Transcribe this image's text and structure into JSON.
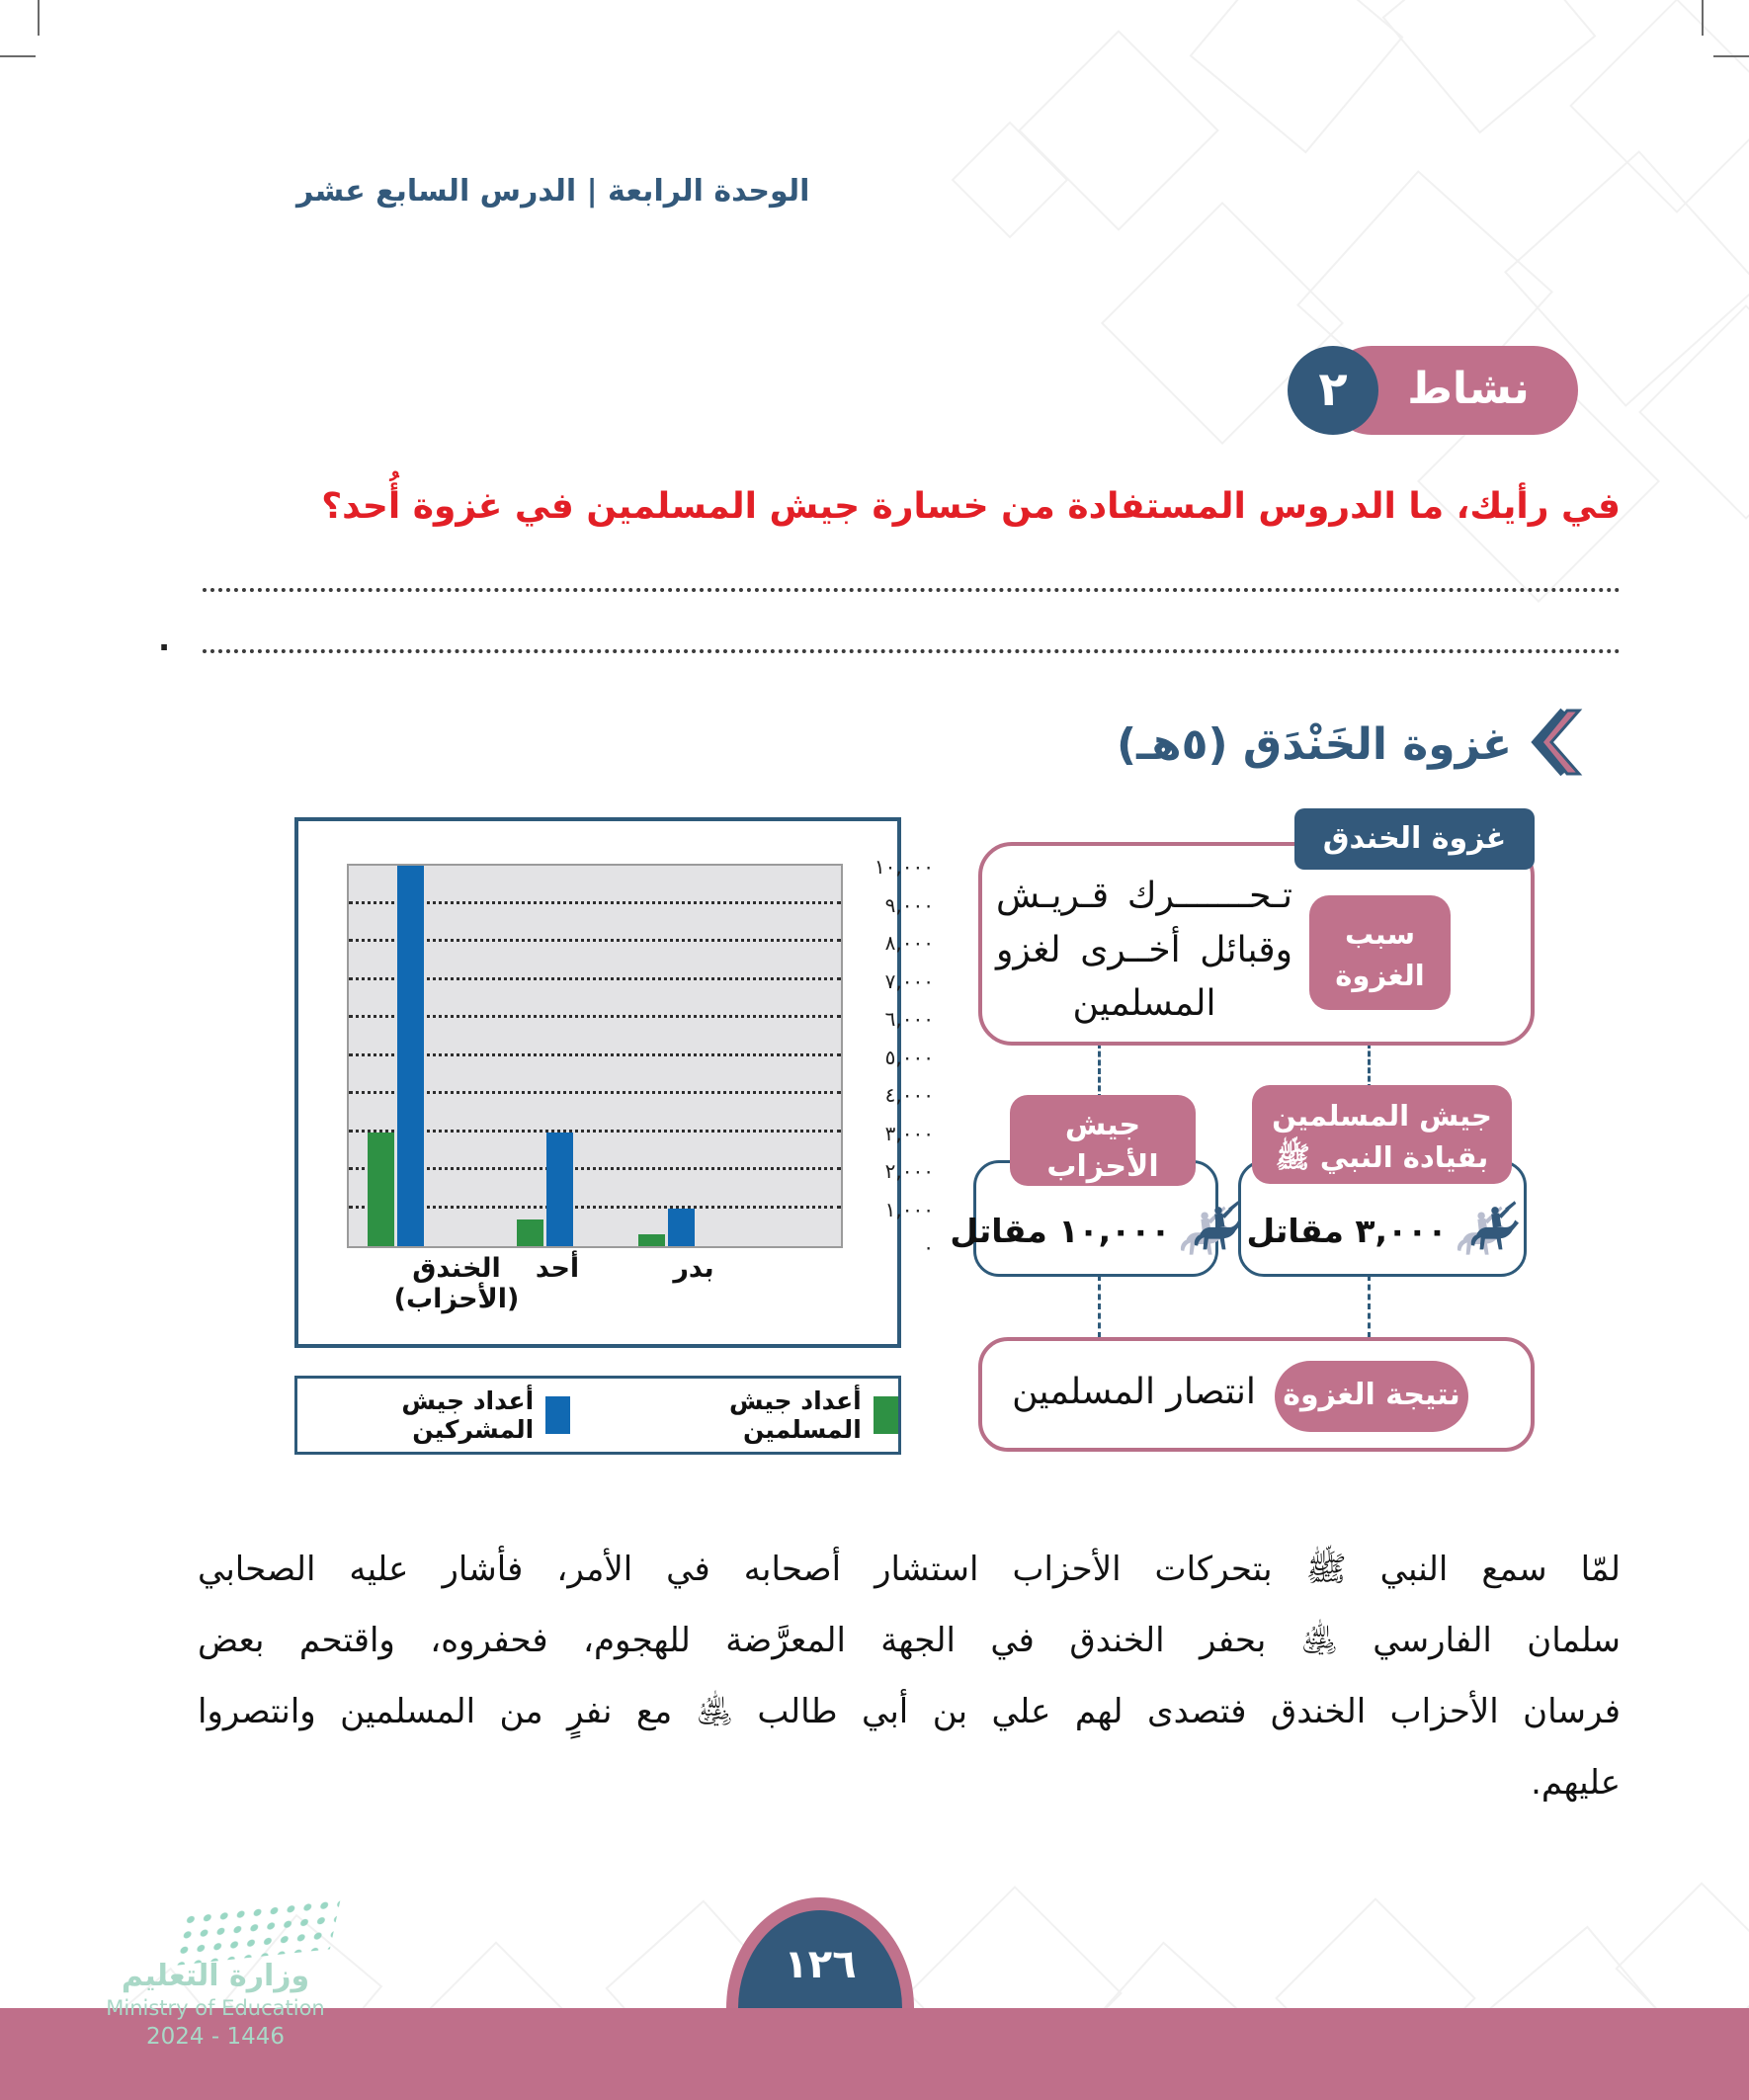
{
  "page": {
    "header": "الوحدة الرابعة | الدرس السابع عشر",
    "page_number": "١٢٦"
  },
  "activity": {
    "label": "نشاط",
    "number": "٢",
    "question": "في رأيك، ما الدروس المستفادة من خسارة جيش المسلمين في غزوة أُحد؟",
    "answer_period": "."
  },
  "section": {
    "title": "غزوة الخَنْدَق (٥هـ)"
  },
  "chart_data": {
    "type": "bar",
    "categories": [
      "الخندق (الأحزاب)",
      "أحد",
      "بدر"
    ],
    "series": [
      {
        "name": "أعداد جيش المشركين",
        "color": "#1169B2",
        "values": [
          10000,
          3000,
          1000
        ]
      },
      {
        "name": "أعداد جيش المسلمين",
        "color": "#2E9144",
        "values": [
          3000,
          700,
          300
        ]
      }
    ],
    "title": "",
    "xlabel": "",
    "ylabel": "",
    "ylim": [
      0,
      10000
    ],
    "ytick_step": 1000,
    "ytick_labels": [
      "٠",
      "١,٠٠٠",
      "٢,٠٠٠",
      "٣,٠٠٠",
      "٤,٠٠٠",
      "٥,٠٠٠",
      "٦,٠٠٠",
      "٧,٠٠٠",
      "٨,٠٠٠",
      "٩,٠٠٠",
      "١٠,٠٠٠"
    ],
    "grid": "horizontal-dashed",
    "legend_position": "bottom",
    "legend": [
      {
        "label": "أعداد جيش المسلمين",
        "color": "#2E9144"
      },
      {
        "label": "أعداد جيش المشركين",
        "color": "#1169B2"
      }
    ]
  },
  "diagram": {
    "title": "غزوة الخندق",
    "reason_label": "سبب الغزوة",
    "reason_lines": [
      "تـحـــــــرك قـريـش",
      "وقبائل أخــرى لغزو",
      "المسلمين"
    ],
    "ahzab_label": "جيش الأحزاب",
    "ahzab_count": "١٠,٠٠٠ مقاتل",
    "muslims_label": "جيش المسلمين بقيادة النبي ﷺ",
    "muslims_count": "٣,٠٠٠ مقاتل",
    "result_label": "نتيجة الغزوة",
    "result_text": "انتصار المسلمين"
  },
  "paragraph": {
    "lines": [
      "لمّا سمع النبي ﷺ بتحركات الأحزاب استشار أصحابه في الأمر، فأشار عليه الصحابي",
      "سلمان الفارسي ﵁ بحفر الخندق في الجهة المعرَّضة للهجوم، فحفروه، واقتحم بعض",
      "فرسان الأحزاب الخندق فتصدى لهم علي بن أبي طالب ﵁ مع نفرٍ من المسلمين وانتصروا",
      "عليهم."
    ]
  },
  "footer": {
    "ministry_ar": "وزارة التعليم",
    "ministry_en": "Ministry of Education",
    "year": "2024 - 1446"
  },
  "colors": {
    "dark_blue": "#33597B",
    "rose": "#C0728C",
    "red": "#E21F26",
    "bar_blue": "#1169B2",
    "bar_green": "#2E9144",
    "band_pink": "#BF6F8A",
    "logo_teal": "#A9D8C7"
  }
}
